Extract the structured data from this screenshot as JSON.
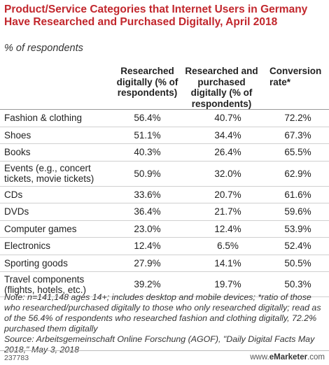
{
  "chart_data": {
    "type": "table",
    "title": "Product/Service Categories that Internet Users in Germany Have Researched and Purchased Digitally, April 2018",
    "subtitle": "% of respondents",
    "columns": [
      "",
      "Researched digitally (% of respondents)",
      "Researched and purchased digitally (% of respondents)",
      "Conversion rate*"
    ],
    "rows": [
      {
        "category": "Fashion & clothing",
        "researched": "56.4%",
        "purchased": "40.7%",
        "conversion": "72.2%"
      },
      {
        "category": "Shoes",
        "researched": "51.1%",
        "purchased": "34.4%",
        "conversion": "67.3%"
      },
      {
        "category": "Books",
        "researched": "40.3%",
        "purchased": "26.4%",
        "conversion": "65.5%"
      },
      {
        "category": "Events (e.g., concert tickets, movie tickets)",
        "researched": "50.9%",
        "purchased": "32.0%",
        "conversion": "62.9%"
      },
      {
        "category": "CDs",
        "researched": "33.6%",
        "purchased": "20.7%",
        "conversion": "61.6%"
      },
      {
        "category": "DVDs",
        "researched": "36.4%",
        "purchased": "21.7%",
        "conversion": "59.6%"
      },
      {
        "category": "Computer games",
        "researched": "23.0%",
        "purchased": "12.4%",
        "conversion": "53.9%"
      },
      {
        "category": "Electronics",
        "researched": "12.4%",
        "purchased": "6.5%",
        "conversion": "52.4%"
      },
      {
        "category": "Sporting goods",
        "researched": "27.9%",
        "purchased": "14.1%",
        "conversion": "50.5%"
      },
      {
        "category": "Travel components (flights, hotels, etc.)",
        "researched": "39.2%",
        "purchased": "19.7%",
        "conversion": "50.3%"
      }
    ],
    "note": "Note: n=141,148 ages 14+; includes desktop and mobile devices; *ratio of those who researched/purchased digitally to those who only researched digitally; read as of the 56.4% of respondents who researched fashion and clothing digitally, 72.2% purchased them digitally",
    "source": "Source: Arbeitsgemeinschaft Online Forschung (AGOF), \"Daily Digital Facts May 2018,\" May 3, 2018"
  },
  "footer": {
    "chart_id": "237783",
    "brand_prefix": "www.",
    "brand_name": "eMarketer",
    "brand_suffix": ".com"
  },
  "colors": {
    "title": "#c2272d",
    "text": "#222222"
  }
}
